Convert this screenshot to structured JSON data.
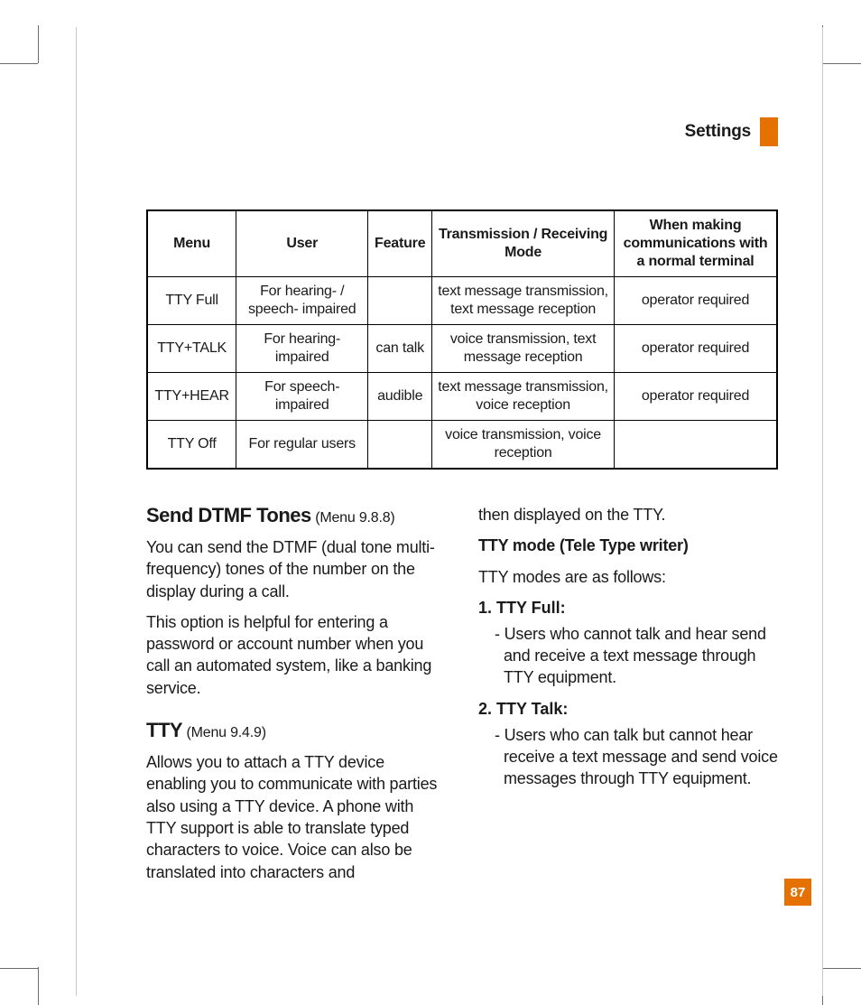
{
  "header": {
    "title": "Settings",
    "accent_color": "#e57200"
  },
  "page_number": "87",
  "table": {
    "columns": [
      "Menu",
      "User",
      "Feature",
      "Transmission / Receiving Mode",
      "When making communications with a normal terminal"
    ],
    "rows": [
      [
        "TTY Full",
        "For hearing- / speech- impaired",
        "",
        "text message transmission, text message reception",
        "operator required"
      ],
      [
        "TTY+TALK",
        "For hearing-impaired",
        "can talk",
        "voice transmission, text message reception",
        "operator required"
      ],
      [
        "TTY+HEAR",
        "For speech-impaired",
        "audible",
        "text message transmission, voice reception",
        "operator required"
      ],
      [
        "TTY Off",
        "For regular users",
        "",
        "voice transmission, voice reception",
        ""
      ]
    ]
  },
  "left": {
    "dtmf_heading": "Send DTMF Tones",
    "dtmf_menu": "(Menu 9.8.8)",
    "dtmf_p1": "You can send the DTMF (dual tone multi-frequency) tones of the number on the display during a call.",
    "dtmf_p2": "This option is helpful for entering a password or account number when you call an automated system, like a banking service.",
    "tty_heading": "TTY",
    "tty_menu": "(Menu 9.4.9)",
    "tty_p1": "Allows you to attach a TTY device enabling you to communicate with parties also using a TTY device. A phone with TTY support is able to translate typed characters to voice. Voice can also be translated into characters and"
  },
  "right": {
    "cont": "then displayed on the TTY.",
    "mode_heading": "TTY mode (Tele Type writer)",
    "modes_intro": "TTY modes are as follows:",
    "item1_head": "1. TTY Full:",
    "item1_body": "- Users who cannot talk and hear send and receive a text message through TTY equipment.",
    "item2_head": "2. TTY Talk:",
    "item2_body": "- Users who can talk but cannot hear receive a text message and send voice messages through TTY equipment."
  }
}
